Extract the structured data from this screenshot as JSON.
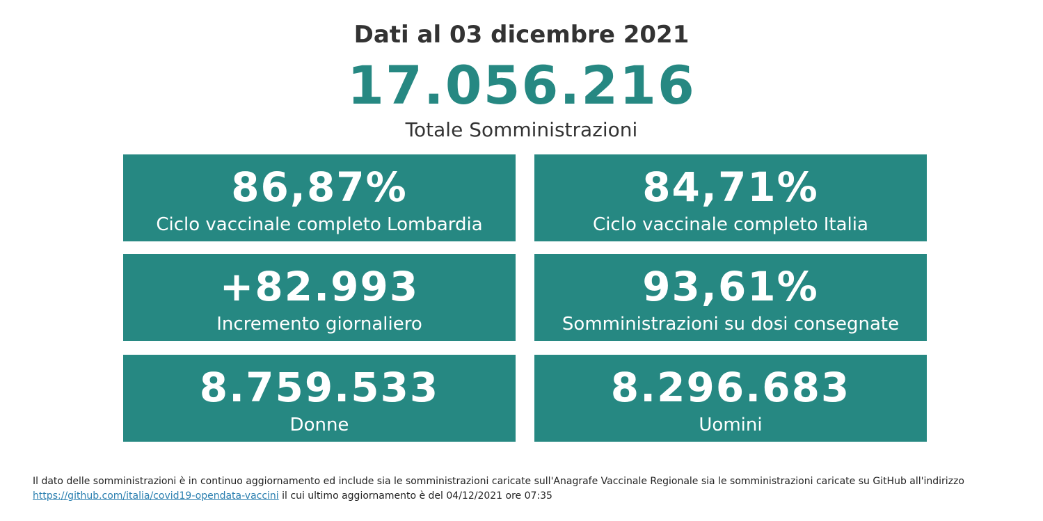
{
  "header": {
    "date": "Dati al 03 dicembre 2021",
    "total": "17.056.216",
    "total_label": "Totale Somministrazioni"
  },
  "cards": [
    {
      "value": "86,87%",
      "label": "Ciclo vaccinale completo Lombardia"
    },
    {
      "value": "84,71%",
      "label": "Ciclo vaccinale completo Italia"
    },
    {
      "value": "+82.993",
      "label": "Incremento giornaliero"
    },
    {
      "value": "93,61%",
      "label": "Somministrazioni su dosi consegnate"
    },
    {
      "value": "8.759.533",
      "label": "Donne"
    },
    {
      "value": "8.296.683",
      "label": "Uomini"
    }
  ],
  "footer": {
    "text_before": "Il dato delle somministrazioni è in continuo aggiornamento ed include sia le somministrazioni caricate sull'Anagrafe Vaccinale Regionale sia le somministrazioni caricate su GitHub all'indirizzo ",
    "link_text": "https://github.com/italia/covid19-opendata-vaccini",
    "text_after": " il cui ultimo aggiornamento è del 04/12/2021 ore 07:35"
  },
  "colors": {
    "accent": "#268882",
    "text": "#333333",
    "link": "#2a7fb0"
  }
}
